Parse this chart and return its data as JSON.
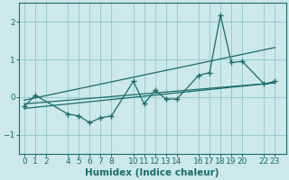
{
  "xlabel": "Humidex (Indice chaleur)",
  "ylabel": "",
  "background_color": "#cce8e8",
  "grid_color": "#99cccc",
  "line_color": "#1a6b6b",
  "xlim": [
    -0.5,
    24.0
  ],
  "ylim": [
    -1.5,
    2.5
  ],
  "yticks": [
    -1,
    0,
    1,
    2
  ],
  "xticks": [
    0,
    1,
    2,
    4,
    5,
    6,
    7,
    8,
    10,
    11,
    12,
    13,
    14,
    16,
    17,
    18,
    19,
    20,
    22,
    23
  ],
  "data_x": [
    0,
    1,
    4,
    5,
    6,
    7,
    8,
    10,
    11,
    12,
    13,
    14,
    16,
    17,
    18,
    19,
    20,
    22,
    23
  ],
  "data_y": [
    -0.25,
    0.05,
    -0.45,
    -0.5,
    -0.68,
    -0.55,
    -0.5,
    0.42,
    -0.18,
    0.18,
    -0.05,
    -0.05,
    0.58,
    0.65,
    2.18,
    0.92,
    0.95,
    0.35,
    0.42
  ],
  "line1_x": [
    0,
    23
  ],
  "line1_y": [
    -0.3,
    0.38
  ],
  "line2_x": [
    0,
    23
  ],
  "line2_y": [
    -0.08,
    1.32
  ],
  "line3_x": [
    0,
    23
  ],
  "line3_y": [
    -0.18,
    0.38
  ]
}
